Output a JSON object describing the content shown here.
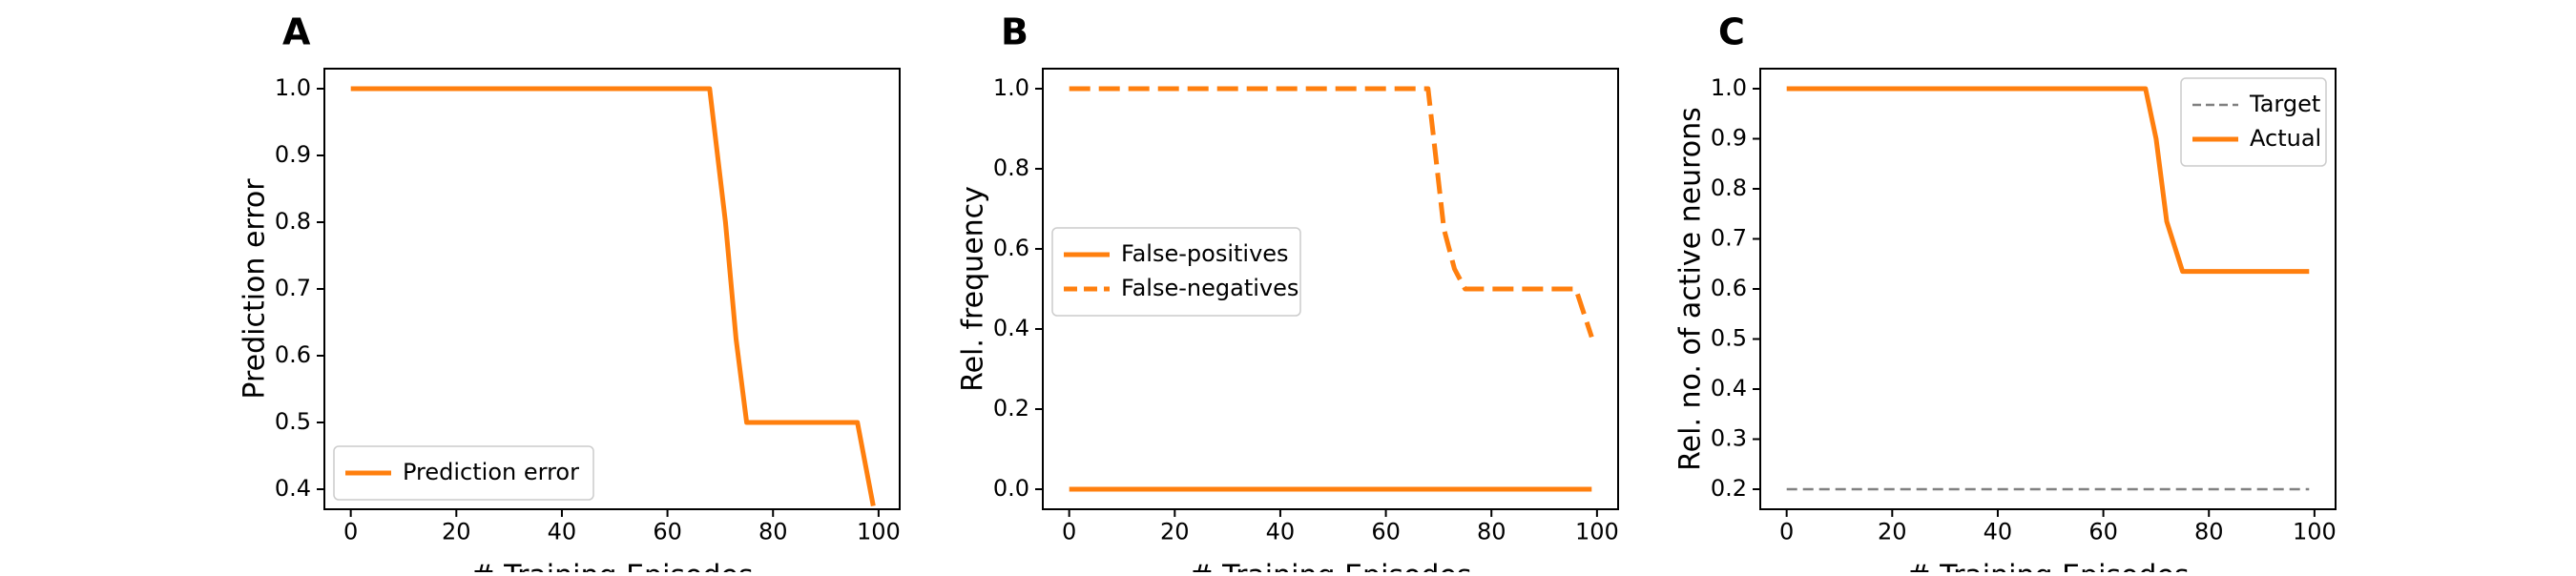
{
  "colors": {
    "series": "#ff7f0e",
    "target": "#808080",
    "axes": "#000000"
  },
  "chart_data": [
    {
      "panel": "A",
      "type": "line",
      "xlabel": "# Training Episodes",
      "ylabel": "Prediction error",
      "xlim": [
        -5,
        104
      ],
      "ylim": [
        0.37,
        1.03
      ],
      "xticks": [
        0,
        20,
        40,
        60,
        80,
        100
      ],
      "yticks": [
        0.4,
        0.5,
        0.6,
        0.7,
        0.8,
        0.9,
        1.0
      ],
      "ytick_format": 1,
      "legend_loc": "lower left",
      "series": [
        {
          "name": "Prediction error",
          "style": "solid",
          "x": [
            0,
            68,
            71,
            73,
            75,
            96,
            99
          ],
          "y": [
            1.0,
            1.0,
            0.8,
            0.625,
            0.5,
            0.5,
            0.375
          ]
        }
      ]
    },
    {
      "panel": "B",
      "type": "line",
      "xlabel": "# Training Episodes",
      "ylabel": "Rel. frequency",
      "xlim": [
        -5,
        104
      ],
      "ylim": [
        -0.05,
        1.05
      ],
      "xticks": [
        0,
        20,
        40,
        60,
        80,
        100
      ],
      "yticks": [
        0.0,
        0.2,
        0.4,
        0.6,
        0.8,
        1.0
      ],
      "ytick_format": 1,
      "legend_loc": "center left",
      "series": [
        {
          "name": "False-positives",
          "style": "solid",
          "x": [
            0,
            99
          ],
          "y": [
            0.0,
            0.0
          ]
        },
        {
          "name": "False-negatives",
          "style": "dashed",
          "x": [
            0,
            68,
            71,
            73,
            75,
            96,
            99
          ],
          "y": [
            1.0,
            1.0,
            0.65,
            0.55,
            0.5,
            0.5,
            0.38
          ]
        }
      ]
    },
    {
      "panel": "C",
      "type": "line",
      "xlabel": "# Training Episodes",
      "ylabel": "Rel. no. of active neurons",
      "xlim": [
        -5,
        104
      ],
      "ylim": [
        0.16,
        1.04
      ],
      "xticks": [
        0,
        20,
        40,
        60,
        80,
        100
      ],
      "yticks": [
        0.2,
        0.3,
        0.4,
        0.5,
        0.6,
        0.7,
        0.8,
        0.9,
        1.0
      ],
      "ytick_format": 1,
      "legend_loc": "upper right",
      "series": [
        {
          "name": "Target",
          "style": "thin-dashed",
          "x": [
            0,
            99
          ],
          "y": [
            0.2,
            0.2
          ]
        },
        {
          "name": "Actual",
          "style": "solid",
          "x": [
            0,
            68,
            70,
            72,
            75,
            99
          ],
          "y": [
            1.0,
            1.0,
            0.9,
            0.735,
            0.635,
            0.635
          ]
        }
      ]
    }
  ]
}
